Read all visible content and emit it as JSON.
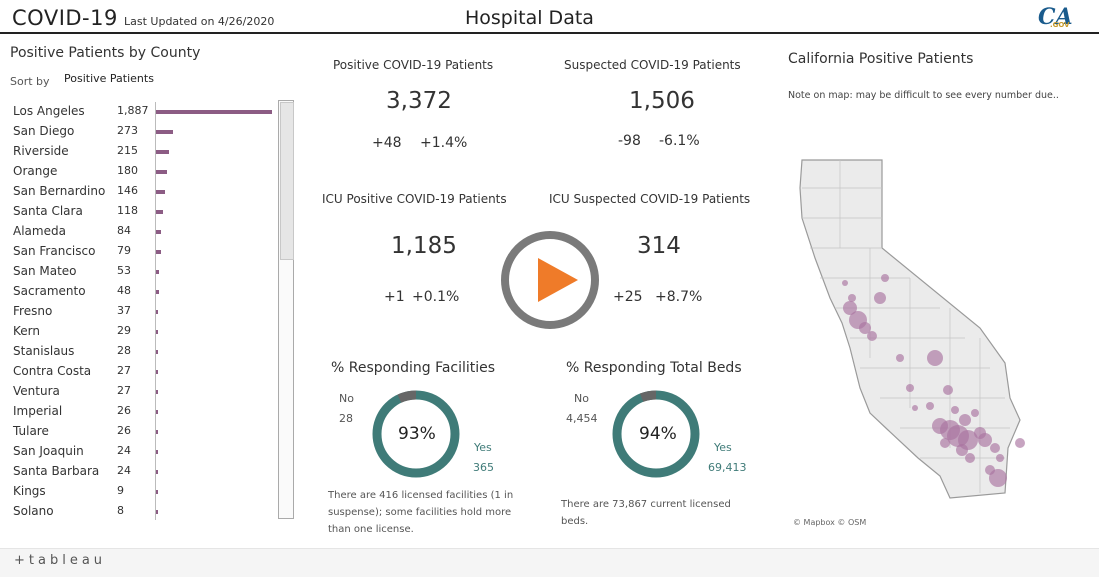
{
  "header": {
    "app_title": "COVID-19",
    "last_updated": "Last Updated on 4/26/2020",
    "page_title": "Hospital Data",
    "logo_text": "CA",
    "logo_sub": ".GOV"
  },
  "county_panel": {
    "title": "Positive Patients by County",
    "sort_label": "Sort by",
    "sort_value": "Positive Patients",
    "counties": [
      {
        "name": "Los Angeles",
        "value": "1,887",
        "v": 1887
      },
      {
        "name": "San Diego",
        "value": "273",
        "v": 273
      },
      {
        "name": "Riverside",
        "value": "215",
        "v": 215
      },
      {
        "name": "Orange",
        "value": "180",
        "v": 180
      },
      {
        "name": "San Bernardino",
        "value": "146",
        "v": 146
      },
      {
        "name": "Santa Clara",
        "value": "118",
        "v": 118
      },
      {
        "name": "Alameda",
        "value": "84",
        "v": 84
      },
      {
        "name": "San Francisco",
        "value": "79",
        "v": 79
      },
      {
        "name": "San Mateo",
        "value": "53",
        "v": 53
      },
      {
        "name": "Sacramento",
        "value": "48",
        "v": 48
      },
      {
        "name": "Fresno",
        "value": "37",
        "v": 37
      },
      {
        "name": "Kern",
        "value": "29",
        "v": 29
      },
      {
        "name": "Stanislaus",
        "value": "28",
        "v": 28
      },
      {
        "name": "Contra Costa",
        "value": "27",
        "v": 27
      },
      {
        "name": "Ventura",
        "value": "27",
        "v": 27
      },
      {
        "name": "Imperial",
        "value": "26",
        "v": 26
      },
      {
        "name": "Tulare",
        "value": "26",
        "v": 26
      },
      {
        "name": "San Joaquin",
        "value": "24",
        "v": 24
      },
      {
        "name": "Santa Barbara",
        "value": "24",
        "v": 24
      },
      {
        "name": "Kings",
        "value": "9",
        "v": 9
      },
      {
        "name": "Solano",
        "value": "8",
        "v": 8
      }
    ]
  },
  "kpis": {
    "positive": {
      "title": "Positive COVID-19 Patients",
      "value": "3,372",
      "delta": "+48",
      "pct": "+1.4%"
    },
    "suspected": {
      "title": "Suspected COVID-19 Patients",
      "value": "1,506",
      "delta": "-98",
      "pct": "-6.1%"
    },
    "icu_positive": {
      "title": "ICU Positive COVID-19 Patients",
      "value": "1,185",
      "delta": "+1",
      "pct": "+0.1%"
    },
    "icu_suspected": {
      "title": "ICU Suspected COVID-19 Patients",
      "value": "314",
      "delta": "+25",
      "pct": "+8.7%"
    }
  },
  "facilities": {
    "title": "% Responding Facilities",
    "no_label": "No",
    "no_value": "28",
    "yes_label": "Yes",
    "yes_value": "365",
    "pct": "93%",
    "fraction": 0.93,
    "note": "There are 416 licensed facilities (1 in suspense); some facilities hold more than one license."
  },
  "beds": {
    "title": "% Responding Total Beds",
    "no_label": "No",
    "no_value": "4,454",
    "yes_label": "Yes",
    "yes_value": "69,413",
    "pct": "94%",
    "fraction": 0.94,
    "note": "There are 73,867 current licensed beds."
  },
  "map_panel": {
    "title": "California Positive Patients",
    "note": "Note on map: may be difficult to see every number due..",
    "credit": "© Mapbox © OSM"
  },
  "footer": {
    "brand": "+tableau"
  },
  "colors": {
    "bar": "#8c5c84",
    "donut_yes": "#3f7b78",
    "donut_no": "#666666",
    "bubble": "#a9739f"
  },
  "icons": {
    "play": "play-icon",
    "logo": "ca-gov-logo"
  }
}
